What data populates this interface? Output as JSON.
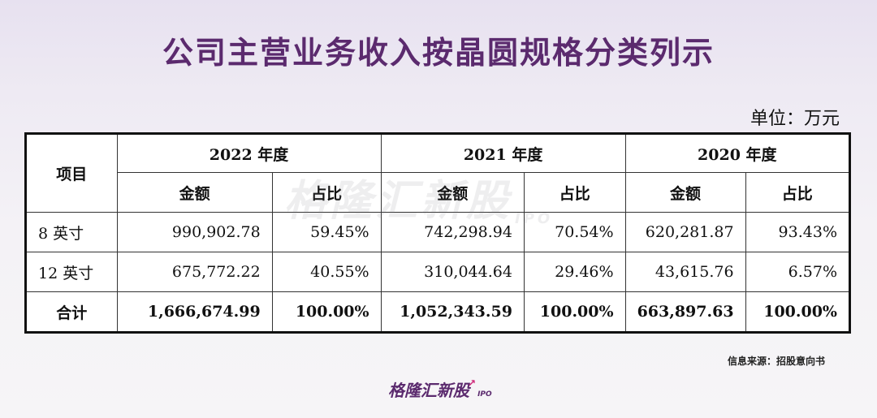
{
  "title": "公司主营业务收入按晶圆规格分类列示",
  "unit": "单位：万元",
  "table": {
    "item_header": "项目",
    "years": [
      "2022 年度",
      "2021 年度",
      "2020 年度"
    ],
    "sub_headers": {
      "amount": "金额",
      "share": "占比"
    },
    "rows": [
      {
        "label": "8 英寸",
        "values": [
          "990,902.78",
          "59.45%",
          "742,298.94",
          "70.54%",
          "620,281.87",
          "93.43%"
        ]
      },
      {
        "label": "12 英寸",
        "values": [
          "675,772.22",
          "40.55%",
          "310,044.64",
          "29.46%",
          "43,615.76",
          "6.57%"
        ]
      },
      {
        "label": "合计",
        "values": [
          "1,666,674.99",
          "100.00%",
          "1,052,343.59",
          "100.00%",
          "663,897.63",
          "100.00%"
        ]
      }
    ]
  },
  "watermark": {
    "text": "格隆汇新股",
    "suffix": "IPO"
  },
  "source": "信息来源：招股意向书",
  "logo": {
    "text": "格隆汇新股",
    "suffix": "IPO"
  },
  "colors": {
    "title": "#5b2a6e",
    "logo_arrow": "#d0287a"
  }
}
